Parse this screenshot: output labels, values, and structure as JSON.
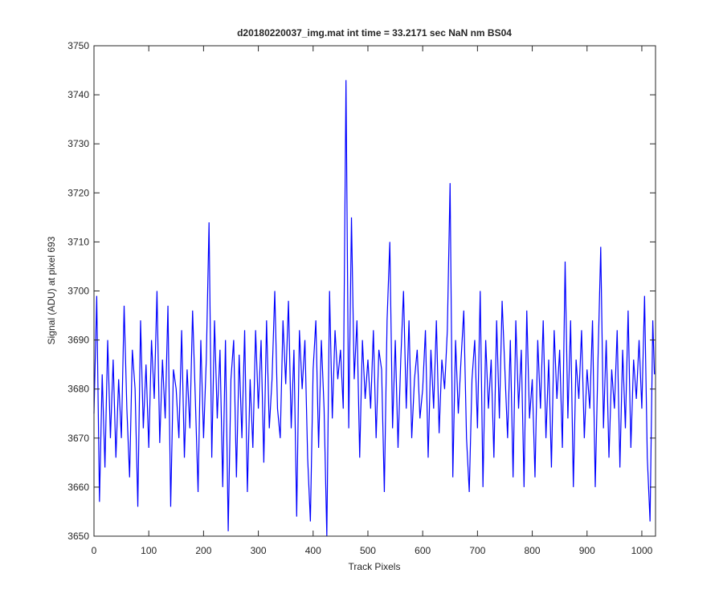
{
  "chart_data": {
    "type": "line",
    "title": "d20180220037_img.mat int time = 33.2171 sec  NaN nm BS04",
    "x_label": "Track Pixels",
    "y_label": "Signal (ADU) at pixel 693",
    "xlim": [
      0,
      1025
    ],
    "ylim": [
      3650,
      3750
    ],
    "xticks": [
      0,
      100,
      200,
      300,
      400,
      500,
      600,
      700,
      800,
      900,
      1000
    ],
    "yticks": [
      3650,
      3660,
      3670,
      3680,
      3690,
      3700,
      3710,
      3720,
      3730,
      3740,
      3750
    ],
    "grid": false,
    "x": [
      0,
      5,
      10,
      15,
      20,
      25,
      30,
      35,
      40,
      45,
      50,
      55,
      60,
      65,
      70,
      75,
      80,
      85,
      90,
      95,
      100,
      105,
      110,
      115,
      120,
      125,
      130,
      135,
      140,
      145,
      150,
      155,
      160,
      165,
      170,
      175,
      180,
      185,
      190,
      195,
      200,
      205,
      210,
      215,
      220,
      225,
      230,
      235,
      240,
      245,
      250,
      255,
      260,
      265,
      270,
      275,
      280,
      285,
      290,
      295,
      300,
      305,
      310,
      315,
      320,
      325,
      330,
      335,
      340,
      345,
      350,
      355,
      360,
      365,
      370,
      375,
      380,
      385,
      390,
      395,
      400,
      405,
      410,
      415,
      420,
      425,
      430,
      435,
      440,
      445,
      450,
      455,
      460,
      465,
      470,
      475,
      480,
      485,
      490,
      495,
      500,
      505,
      510,
      515,
      520,
      525,
      530,
      535,
      540,
      545,
      550,
      555,
      560,
      565,
      570,
      575,
      580,
      585,
      590,
      595,
      600,
      605,
      610,
      615,
      620,
      625,
      630,
      635,
      640,
      645,
      650,
      655,
      660,
      665,
      670,
      675,
      680,
      685,
      690,
      695,
      700,
      705,
      710,
      715,
      720,
      725,
      730,
      735,
      740,
      745,
      750,
      755,
      760,
      765,
      770,
      775,
      780,
      785,
      790,
      795,
      800,
      805,
      810,
      815,
      820,
      825,
      830,
      835,
      840,
      845,
      850,
      855,
      860,
      865,
      870,
      875,
      880,
      885,
      890,
      895,
      900,
      905,
      910,
      915,
      920,
      925,
      930,
      935,
      940,
      945,
      950,
      955,
      960,
      965,
      970,
      975,
      980,
      985,
      990,
      995,
      1000,
      1005,
      1010,
      1015,
      1020,
      1023
    ],
    "series": [
      {
        "color": "#0000ff",
        "values": [
          3675,
          3699,
          3657,
          3683,
          3664,
          3690,
          3670,
          3686,
          3666,
          3682,
          3670,
          3697,
          3676,
          3662,
          3688,
          3680,
          3656,
          3694,
          3672,
          3685,
          3668,
          3690,
          3678,
          3700,
          3669,
          3686,
          3674,
          3697,
          3656,
          3684,
          3680,
          3670,
          3692,
          3666,
          3684,
          3672,
          3696,
          3678,
          3659,
          3690,
          3670,
          3686,
          3714,
          3666,
          3694,
          3674,
          3688,
          3660,
          3690,
          3651,
          3682,
          3690,
          3662,
          3687,
          3670,
          3692,
          3659,
          3682,
          3668,
          3692,
          3676,
          3690,
          3665,
          3694,
          3672,
          3682,
          3700,
          3676,
          3670,
          3694,
          3681,
          3698,
          3672,
          3688,
          3654,
          3692,
          3680,
          3690,
          3666,
          3653,
          3684,
          3694,
          3668,
          3690,
          3676,
          3650,
          3700,
          3674,
          3692,
          3682,
          3688,
          3676,
          3743,
          3672,
          3715,
          3682,
          3694,
          3666,
          3690,
          3678,
          3686,
          3676,
          3692,
          3670,
          3688,
          3684,
          3659,
          3694,
          3710,
          3672,
          3690,
          3668,
          3686,
          3700,
          3676,
          3694,
          3670,
          3682,
          3688,
          3674,
          3680,
          3692,
          3666,
          3688,
          3676,
          3694,
          3671,
          3686,
          3680,
          3692,
          3722,
          3662,
          3690,
          3675,
          3686,
          3696,
          3670,
          3659,
          3682,
          3690,
          3672,
          3700,
          3660,
          3690,
          3676,
          3686,
          3666,
          3694,
          3674,
          3698,
          3684,
          3670,
          3690,
          3662,
          3694,
          3676,
          3688,
          3660,
          3696,
          3674,
          3682,
          3662,
          3690,
          3676,
          3694,
          3670,
          3686,
          3664,
          3692,
          3678,
          3688,
          3668,
          3706,
          3674,
          3694,
          3660,
          3686,
          3678,
          3692,
          3670,
          3684,
          3676,
          3694,
          3660,
          3686,
          3709,
          3672,
          3690,
          3666,
          3684,
          3676,
          3692,
          3664,
          3688,
          3672,
          3696,
          3668,
          3686,
          3678,
          3690,
          3676,
          3699,
          3666,
          3653,
          3694,
          3683
        ]
      }
    ]
  }
}
